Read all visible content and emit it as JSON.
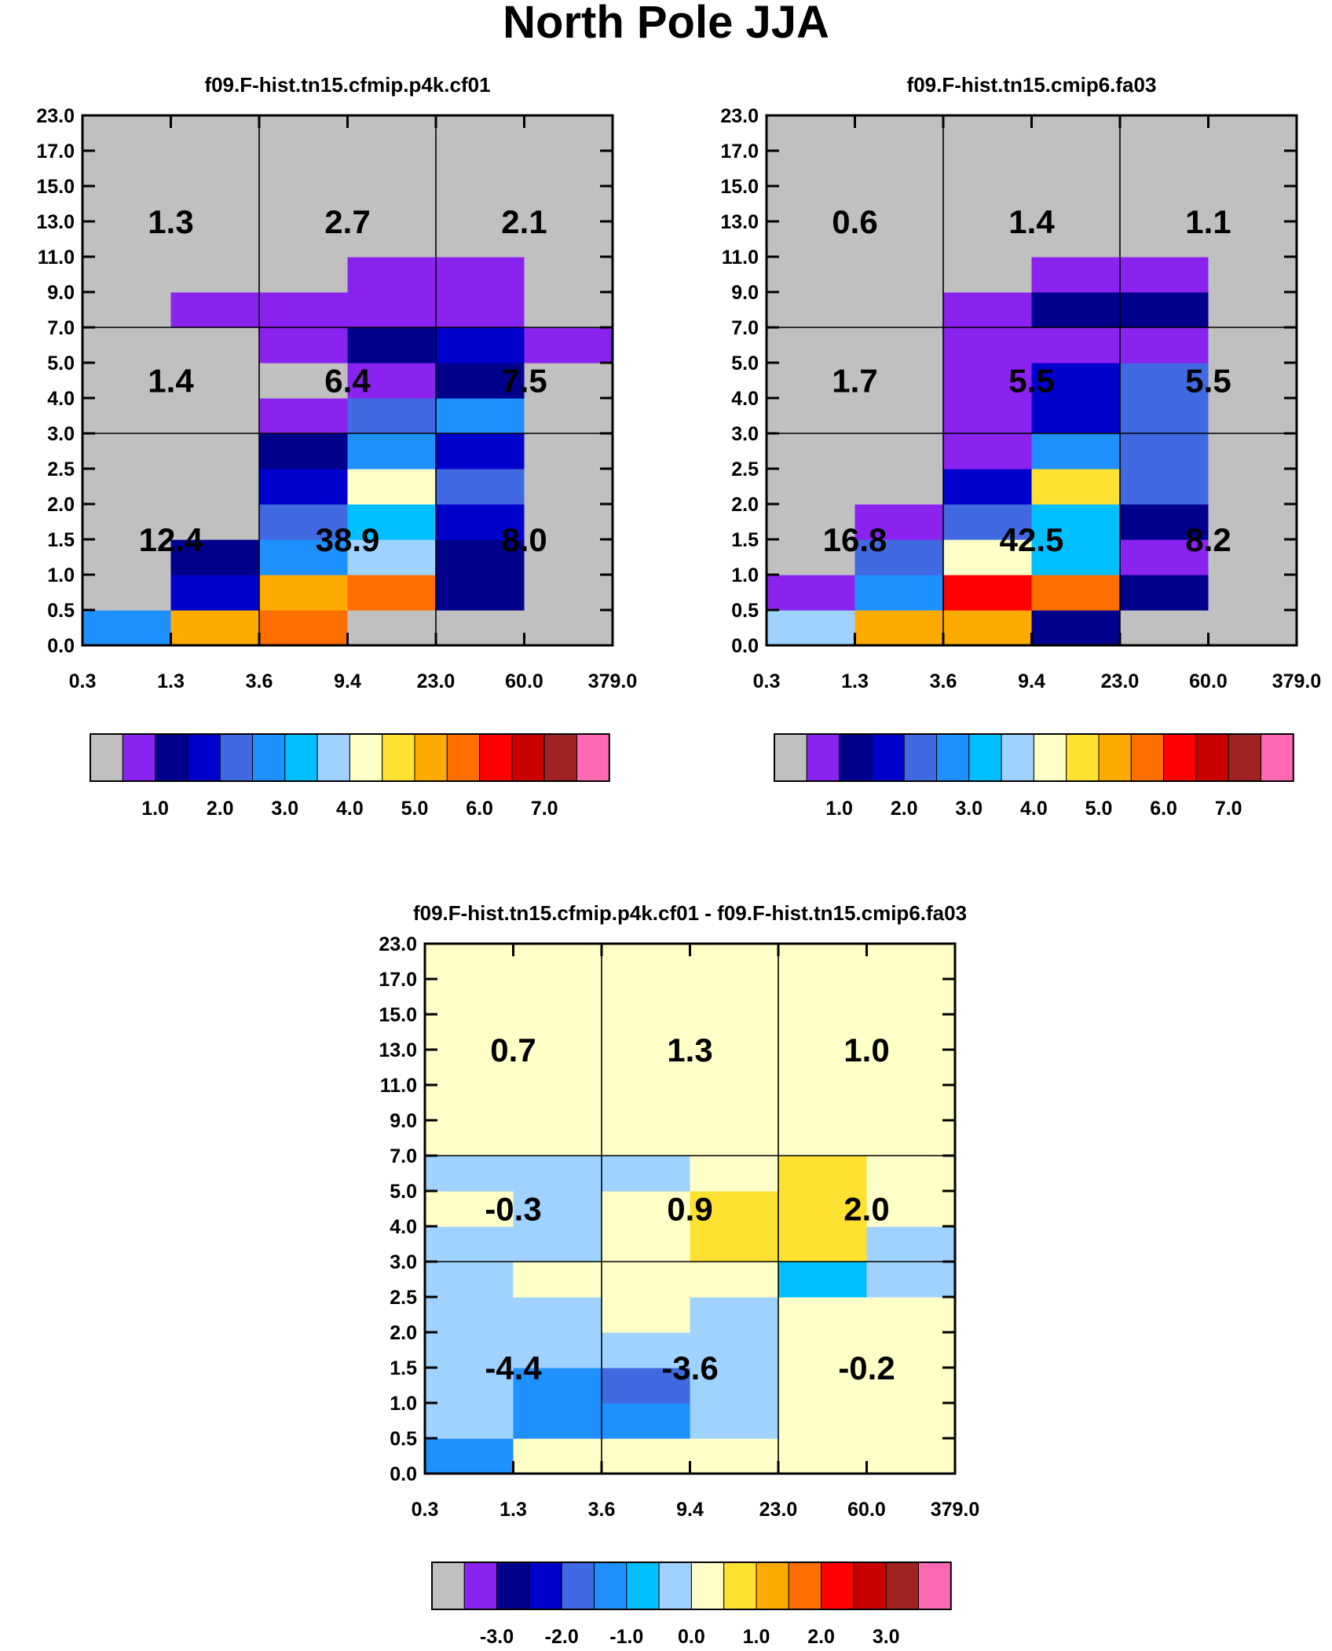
{
  "figure": {
    "title": "North Pole JJA"
  },
  "chart_data": [
    {
      "type": "heatmap",
      "title": "f09.F-hist.tn15.cfmip.p4k.cf01",
      "xticks": [
        "0.3",
        "1.3",
        "3.6",
        "9.4",
        "23.0",
        "60.0",
        "379.0"
      ],
      "yticks": [
        "0.0",
        "0.5",
        "1.0",
        "1.5",
        "2.0",
        "2.5",
        "3.0",
        "4.0",
        "5.0",
        "7.0",
        "9.0",
        "11.0",
        "13.0",
        "15.0",
        "17.0",
        "23.0"
      ],
      "cell_levels": [
        [
          5,
          10,
          11,
          0,
          0,
          0
        ],
        [
          0,
          3,
          10,
          11,
          2,
          0
        ],
        [
          0,
          2,
          5,
          7,
          2,
          0
        ],
        [
          0,
          0,
          4,
          6,
          3,
          0
        ],
        [
          0,
          0,
          3,
          8,
          4,
          0
        ],
        [
          0,
          0,
          2,
          5,
          3,
          0
        ],
        [
          0,
          0,
          1,
          4,
          5,
          0
        ],
        [
          0,
          0,
          0,
          1,
          2,
          0
        ],
        [
          0,
          0,
          1,
          2,
          3,
          1
        ],
        [
          0,
          1,
          1,
          1,
          1,
          0
        ],
        [
          0,
          0,
          0,
          1,
          1,
          0
        ],
        [
          0,
          0,
          0,
          0,
          0,
          0
        ],
        [
          0,
          0,
          0,
          0,
          0,
          0
        ],
        [
          0,
          0,
          0,
          0,
          0,
          0
        ],
        [
          0,
          0,
          0,
          0,
          0,
          0
        ]
      ],
      "summary_values": [
        [
          "12.4",
          "38.9",
          "8.0"
        ],
        [
          "1.4",
          "6.4",
          "7.5"
        ],
        [
          "1.3",
          "2.7",
          "2.1"
        ]
      ],
      "colorbar": {
        "colors": [
          "#c0c0c0",
          "#8a23f0",
          "#00008c",
          "#0000cd",
          "#4169e1",
          "#1e90ff",
          "#00bfff",
          "#a0d2ff",
          "#ffffc8",
          "#ffe132",
          "#ffaa00",
          "#ff6e00",
          "#ff0000",
          "#c80000",
          "#a02323",
          "#ff69b4"
        ],
        "labels": [
          "1.0",
          "2.0",
          "3.0",
          "4.0",
          "5.0",
          "6.0",
          "7.0"
        ]
      }
    },
    {
      "type": "heatmap",
      "title": "f09.F-hist.tn15.cmip6.fa03",
      "xticks": [
        "0.3",
        "1.3",
        "3.6",
        "9.4",
        "23.0",
        "60.0",
        "379.0"
      ],
      "yticks": [
        "0.0",
        "0.5",
        "1.0",
        "1.5",
        "2.0",
        "2.5",
        "3.0",
        "4.0",
        "5.0",
        "7.0",
        "9.0",
        "11.0",
        "13.0",
        "15.0",
        "17.0",
        "23.0"
      ],
      "cell_levels": [
        [
          7,
          10,
          10,
          2,
          0,
          0
        ],
        [
          1,
          5,
          12,
          11,
          2,
          0
        ],
        [
          0,
          4,
          8,
          6,
          1,
          0
        ],
        [
          0,
          1,
          4,
          6,
          2,
          0
        ],
        [
          0,
          0,
          3,
          9,
          4,
          0
        ],
        [
          0,
          0,
          1,
          5,
          4,
          0
        ],
        [
          0,
          0,
          1,
          3,
          4,
          0
        ],
        [
          0,
          0,
          1,
          3,
          4,
          0
        ],
        [
          0,
          0,
          1,
          1,
          1,
          0
        ],
        [
          0,
          0,
          1,
          2,
          2,
          0
        ],
        [
          0,
          0,
          0,
          1,
          1,
          0
        ],
        [
          0,
          0,
          0,
          0,
          0,
          0
        ],
        [
          0,
          0,
          0,
          0,
          0,
          0
        ],
        [
          0,
          0,
          0,
          0,
          0,
          0
        ],
        [
          0,
          0,
          0,
          0,
          0,
          0
        ]
      ],
      "summary_values": [
        [
          "16.8",
          "42.5",
          "8.2"
        ],
        [
          "1.7",
          "5.5",
          "5.5"
        ],
        [
          "0.6",
          "1.4",
          "1.1"
        ]
      ],
      "colorbar": {
        "colors": [
          "#c0c0c0",
          "#8a23f0",
          "#00008c",
          "#0000cd",
          "#4169e1",
          "#1e90ff",
          "#00bfff",
          "#a0d2ff",
          "#ffffc8",
          "#ffe132",
          "#ffaa00",
          "#ff6e00",
          "#ff0000",
          "#c80000",
          "#a02323",
          "#ff69b4"
        ],
        "labels": [
          "1.0",
          "2.0",
          "3.0",
          "4.0",
          "5.0",
          "6.0",
          "7.0"
        ]
      }
    },
    {
      "type": "heatmap",
      "title": "f09.F-hist.tn15.cfmip.p4k.cf01 - f09.F-hist.tn15.cmip6.fa03",
      "xticks": [
        "0.3",
        "1.3",
        "3.6",
        "9.4",
        "23.0",
        "60.0",
        "379.0"
      ],
      "yticks": [
        "0.0",
        "0.5",
        "1.0",
        "1.5",
        "2.0",
        "2.5",
        "3.0",
        "4.0",
        "5.0",
        "7.0",
        "9.0",
        "11.0",
        "13.0",
        "15.0",
        "17.0",
        "23.0"
      ],
      "cell_levels": [
        [
          5,
          8,
          8,
          8,
          8,
          8
        ],
        [
          7,
          5,
          5,
          7,
          8,
          8
        ],
        [
          7,
          5,
          4,
          7,
          8,
          8
        ],
        [
          7,
          7,
          7,
          7,
          8,
          8
        ],
        [
          7,
          7,
          8,
          7,
          8,
          8
        ],
        [
          7,
          8,
          8,
          8,
          6,
          7
        ],
        [
          7,
          7,
          8,
          9,
          9,
          7
        ],
        [
          8,
          7,
          8,
          9,
          9,
          8
        ],
        [
          7,
          7,
          7,
          8,
          9,
          8
        ],
        [
          8,
          8,
          8,
          8,
          8,
          8
        ],
        [
          8,
          8,
          8,
          8,
          8,
          8
        ],
        [
          8,
          8,
          8,
          8,
          8,
          8
        ],
        [
          8,
          8,
          8,
          8,
          8,
          8
        ],
        [
          8,
          8,
          8,
          8,
          8,
          8
        ],
        [
          8,
          8,
          8,
          8,
          8,
          8
        ]
      ],
      "summary_values": [
        [
          "-4.4",
          "-3.6",
          "-0.2"
        ],
        [
          "-0.3",
          "0.9",
          "2.0"
        ],
        [
          "0.7",
          "1.3",
          "1.0"
        ]
      ],
      "colorbar": {
        "colors": [
          "#c0c0c0",
          "#8a23f0",
          "#00008c",
          "#0000cd",
          "#4169e1",
          "#1e90ff",
          "#00bfff",
          "#a0d2ff",
          "#ffffc8",
          "#ffe132",
          "#ffaa00",
          "#ff6e00",
          "#ff0000",
          "#c80000",
          "#a02323",
          "#ff69b4"
        ],
        "labels": [
          "-3.0",
          "-2.0",
          "-1.0",
          "0.0",
          "1.0",
          "2.0",
          "3.0"
        ]
      }
    }
  ]
}
